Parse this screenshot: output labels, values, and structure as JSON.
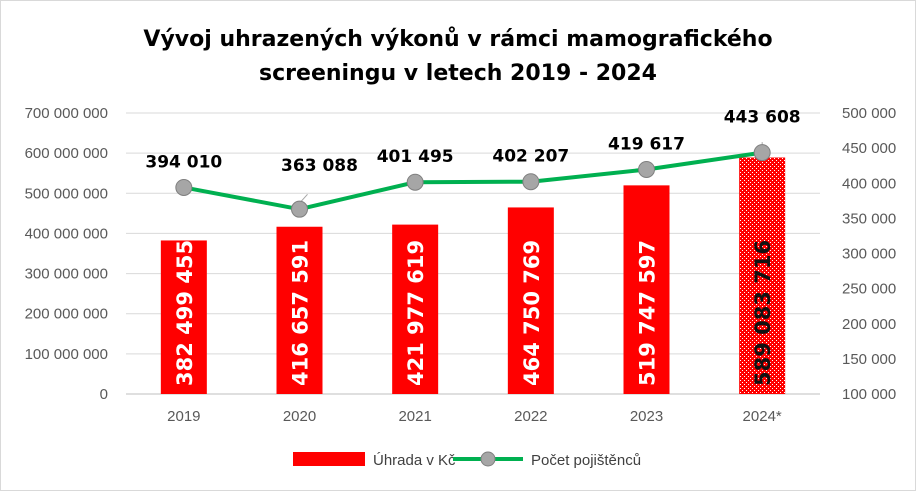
{
  "chart_data": {
    "type": "bar+line",
    "title_lines": [
      "Vývoj uhrazených výkonů v rámci mamografického",
      "screeningu v letech 2019 - 2024"
    ],
    "categories": [
      "2019",
      "2020",
      "2021",
      "2022",
      "2023",
      "2024*"
    ],
    "series": [
      {
        "name": "Úhrada v Kč",
        "type": "bar",
        "axis": "left",
        "color": "#ff0000",
        "values": [
          382499455,
          416657591,
          421977619,
          464750769,
          519747597,
          589083716
        ],
        "labels": [
          "382 499 455",
          "416 657 591",
          "421 977 619",
          "464 750 769",
          "519 747 597",
          "589 083 716"
        ]
      },
      {
        "name": "Počet pojištěnců",
        "type": "line",
        "axis": "right",
        "color": "#00b050",
        "marker_color": "#a6a6a6",
        "values": [
          394010,
          363088,
          401495,
          402207,
          419617,
          443608
        ],
        "labels": [
          "394 010",
          "363 088",
          "401 495",
          "402 207",
          "419 617",
          "443 608"
        ]
      }
    ],
    "y_left": {
      "range": [
        0,
        700000000
      ],
      "ticks": [
        "0",
        "100 000 000",
        "200 000 000",
        "300 000 000",
        "400 000 000",
        "500 000 000",
        "600 000 000",
        "700 000 000"
      ]
    },
    "y_right": {
      "range": [
        100000,
        500000
      ],
      "ticks": [
        "100 000",
        "150 000",
        "200 000",
        "250 000",
        "300 000",
        "350 000",
        "400 000",
        "450 000",
        "500 000"
      ]
    },
    "grid": true,
    "legend_position": "bottom"
  }
}
